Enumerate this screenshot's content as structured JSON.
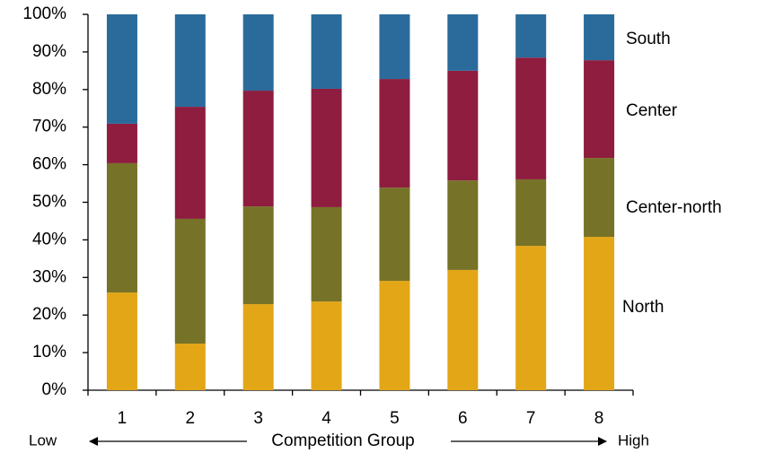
{
  "chart_data": {
    "type": "stacked_bar_percent",
    "x_label": "Competition Group",
    "x_low_label": "Low",
    "x_high_label": "High",
    "categories": [
      "1",
      "2",
      "3",
      "4",
      "5",
      "6",
      "7",
      "8"
    ],
    "series": [
      {
        "name": "North",
        "color": "#e3a617",
        "values": [
          26.0,
          12.4,
          22.9,
          23.6,
          29.1,
          32.0,
          38.4,
          40.8
        ]
      },
      {
        "name": "Center-north",
        "color": "#767227",
        "values": [
          34.4,
          33.2,
          26.0,
          25.1,
          24.8,
          23.8,
          17.7,
          21.0
        ]
      },
      {
        "name": "Center",
        "color": "#8e1d3f",
        "values": [
          10.5,
          29.8,
          30.8,
          31.5,
          28.9,
          29.2,
          32.4,
          26.0
        ]
      },
      {
        "name": "South",
        "color": "#2a6b9b",
        "values": [
          29.1,
          24.6,
          20.3,
          19.8,
          17.2,
          15.0,
          11.5,
          12.2
        ]
      }
    ],
    "ylim": [
      0,
      100
    ],
    "yticks": [
      {
        "value": 0,
        "label": "0%"
      },
      {
        "value": 10,
        "label": "10%"
      },
      {
        "value": 20,
        "label": "20%"
      },
      {
        "value": 30,
        "label": "30%"
      },
      {
        "value": 40,
        "label": "40%"
      },
      {
        "value": 50,
        "label": "50%"
      },
      {
        "value": 60,
        "label": "60%"
      },
      {
        "value": 70,
        "label": "70%"
      },
      {
        "value": 80,
        "label": "80%"
      },
      {
        "value": 90,
        "label": "90%"
      },
      {
        "value": 100,
        "label": "100%"
      }
    ],
    "grid": false
  }
}
